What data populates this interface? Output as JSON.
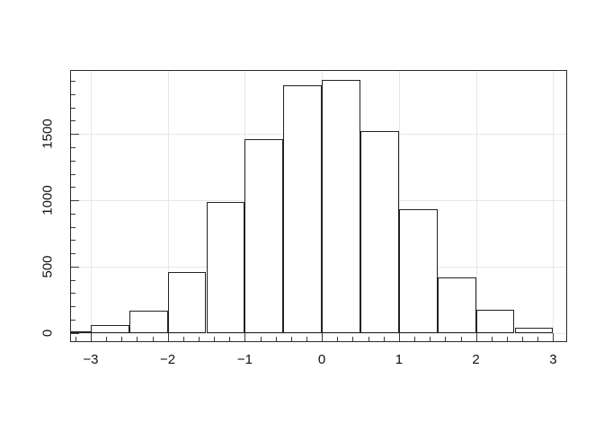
{
  "figure": {
    "background": "#ffffff"
  },
  "chart_data": {
    "type": "bar",
    "subtype": "histogram",
    "title": "",
    "xlabel": "",
    "ylabel": "",
    "bin_edges": [
      -3.5,
      -3.0,
      -2.5,
      -2.0,
      -1.5,
      -1.0,
      -0.5,
      0.0,
      0.5,
      1.0,
      1.5,
      2.0,
      2.5,
      3.0
    ],
    "counts": [
      10,
      57,
      170,
      460,
      985,
      1460,
      1870,
      1910,
      1520,
      935,
      415,
      172,
      40
    ],
    "xlim": [
      -3.267,
      3.182
    ],
    "ylim": [
      -70,
      1982
    ],
    "x_ticks_major": [
      -3,
      -2,
      -1,
      0,
      1,
      2,
      3
    ],
    "x_tick_labels": [
      "−3",
      "−2",
      "−1",
      "0",
      "1",
      "2",
      "3"
    ],
    "x_minor_step": 0.2,
    "y_ticks_major": [
      0,
      500,
      1000,
      1500
    ],
    "y_tick_labels": [
      "0",
      "500",
      "1000",
      "1500"
    ],
    "y_minor_step": 100,
    "grid": true,
    "legend": "none",
    "colors": {
      "bar_fill": "#ffffff",
      "bar_border": "#222222",
      "grid": "#e7e7e7",
      "tick": "#3a3a3a",
      "box": "#2b2b2b",
      "label": "#111111"
    }
  }
}
